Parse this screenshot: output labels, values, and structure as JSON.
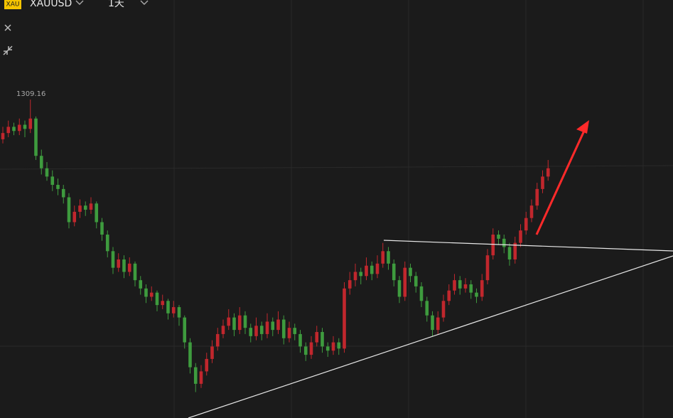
{
  "header": {
    "badge": "XAU",
    "symbol": "XAUUSD",
    "interval": "1天"
  },
  "chart_data": {
    "type": "candlestick",
    "up_color": "#c1272d",
    "down_color": "#3e9b3e",
    "ylim": [
      1155.5,
      1357.2
    ],
    "high_label_index": 5,
    "ohlc": [
      [
        1290,
        1296,
        1288,
        1293
      ],
      [
        1293,
        1299,
        1291,
        1296
      ],
      [
        1296,
        1298,
        1292,
        1294
      ],
      [
        1294,
        1300,
        1292,
        1297
      ],
      [
        1297,
        1299,
        1291,
        1295
      ],
      [
        1295,
        1309.16,
        1293,
        1300
      ],
      [
        1300,
        1301,
        1280,
        1282
      ],
      [
        1282,
        1285,
        1273,
        1276
      ],
      [
        1276,
        1279,
        1270,
        1272
      ],
      [
        1272,
        1275,
        1265,
        1268
      ],
      [
        1268,
        1271,
        1263,
        1266
      ],
      [
        1266,
        1268,
        1259,
        1262
      ],
      [
        1262,
        1264,
        1247,
        1250
      ],
      [
        1250,
        1258,
        1248,
        1255
      ],
      [
        1255,
        1261,
        1252,
        1258
      ],
      [
        1258,
        1260,
        1253,
        1256
      ],
      [
        1256,
        1262,
        1254,
        1259
      ],
      [
        1259,
        1260,
        1247,
        1250
      ],
      [
        1250,
        1252,
        1241,
        1244
      ],
      [
        1244,
        1246,
        1233,
        1236
      ],
      [
        1236,
        1238,
        1225,
        1228
      ],
      [
        1228,
        1235,
        1226,
        1232
      ],
      [
        1232,
        1234,
        1223,
        1226
      ],
      [
        1226,
        1233,
        1224,
        1230
      ],
      [
        1230,
        1231,
        1219,
        1222
      ],
      [
        1222,
        1224,
        1215,
        1218
      ],
      [
        1218,
        1220,
        1211,
        1214
      ],
      [
        1214,
        1219,
        1212,
        1216
      ],
      [
        1216,
        1217,
        1207,
        1210
      ],
      [
        1210,
        1215,
        1208,
        1212
      ],
      [
        1212,
        1213,
        1203,
        1206
      ],
      [
        1206,
        1212,
        1204,
        1209
      ],
      [
        1209,
        1210,
        1200,
        1204
      ],
      [
        1204,
        1205,
        1189,
        1192
      ],
      [
        1192,
        1194,
        1177,
        1180
      ],
      [
        1180,
        1182,
        1168,
        1172
      ],
      [
        1172,
        1181,
        1170,
        1178
      ],
      [
        1178,
        1187,
        1176,
        1184
      ],
      [
        1184,
        1193,
        1182,
        1190
      ],
      [
        1190,
        1199,
        1188,
        1196
      ],
      [
        1196,
        1203,
        1194,
        1200
      ],
      [
        1200,
        1208,
        1198,
        1204
      ],
      [
        1204,
        1206,
        1195,
        1198
      ],
      [
        1198,
        1209,
        1196,
        1205
      ],
      [
        1205,
        1207,
        1196,
        1199
      ],
      [
        1199,
        1201,
        1192,
        1195
      ],
      [
        1195,
        1204,
        1193,
        1200
      ],
      [
        1200,
        1202,
        1193,
        1196
      ],
      [
        1196,
        1206,
        1194,
        1202
      ],
      [
        1202,
        1204,
        1195,
        1198
      ],
      [
        1198,
        1207,
        1196,
        1203
      ],
      [
        1203,
        1205,
        1191,
        1194
      ],
      [
        1194,
        1202,
        1192,
        1199
      ],
      [
        1199,
        1201,
        1193,
        1196
      ],
      [
        1196,
        1198,
        1187,
        1190
      ],
      [
        1190,
        1192,
        1183,
        1186
      ],
      [
        1186,
        1195,
        1184,
        1192
      ],
      [
        1192,
        1200,
        1190,
        1197
      ],
      [
        1197,
        1199,
        1187,
        1190
      ],
      [
        1190,
        1192,
        1185,
        1188
      ],
      [
        1188,
        1195,
        1186,
        1192
      ],
      [
        1192,
        1194,
        1186,
        1189
      ],
      [
        1189,
        1221,
        1187,
        1218
      ],
      [
        1218,
        1226,
        1215,
        1222
      ],
      [
        1222,
        1230,
        1219,
        1226
      ],
      [
        1226,
        1228,
        1220,
        1224
      ],
      [
        1224,
        1233,
        1222,
        1229
      ],
      [
        1229,
        1231,
        1222,
        1225
      ],
      [
        1225,
        1234,
        1223,
        1230
      ],
      [
        1230,
        1240,
        1228,
        1236
      ],
      [
        1236,
        1238,
        1227,
        1230
      ],
      [
        1230,
        1232,
        1219,
        1222
      ],
      [
        1222,
        1224,
        1211,
        1214
      ],
      [
        1214,
        1231,
        1212,
        1228
      ],
      [
        1228,
        1230,
        1221,
        1224
      ],
      [
        1224,
        1226,
        1216,
        1219
      ],
      [
        1219,
        1221,
        1209,
        1212
      ],
      [
        1212,
        1214,
        1202,
        1205
      ],
      [
        1205,
        1207,
        1195,
        1198
      ],
      [
        1198,
        1207,
        1196,
        1204
      ],
      [
        1204,
        1215,
        1202,
        1212
      ],
      [
        1212,
        1220,
        1210,
        1217
      ],
      [
        1217,
        1225,
        1215,
        1222
      ],
      [
        1222,
        1224,
        1215,
        1218
      ],
      [
        1218,
        1223,
        1216,
        1220
      ],
      [
        1220,
        1222,
        1213,
        1216
      ],
      [
        1216,
        1218,
        1211,
        1214
      ],
      [
        1214,
        1225,
        1212,
        1222
      ],
      [
        1222,
        1237,
        1220,
        1234
      ],
      [
        1234,
        1247,
        1232,
        1244
      ],
      [
        1244,
        1246,
        1239,
        1242
      ],
      [
        1242,
        1244,
        1235,
        1238
      ],
      [
        1238,
        1240,
        1229,
        1232
      ],
      [
        1232,
        1243,
        1230,
        1240
      ],
      [
        1240,
        1249,
        1238,
        1246
      ],
      [
        1246,
        1255,
        1244,
        1252
      ],
      [
        1252,
        1261,
        1250,
        1258
      ],
      [
        1258,
        1269,
        1256,
        1266
      ],
      [
        1266,
        1275,
        1264,
        1272
      ],
      [
        1272,
        1280,
        1270,
        1276
      ]
    ]
  }
}
